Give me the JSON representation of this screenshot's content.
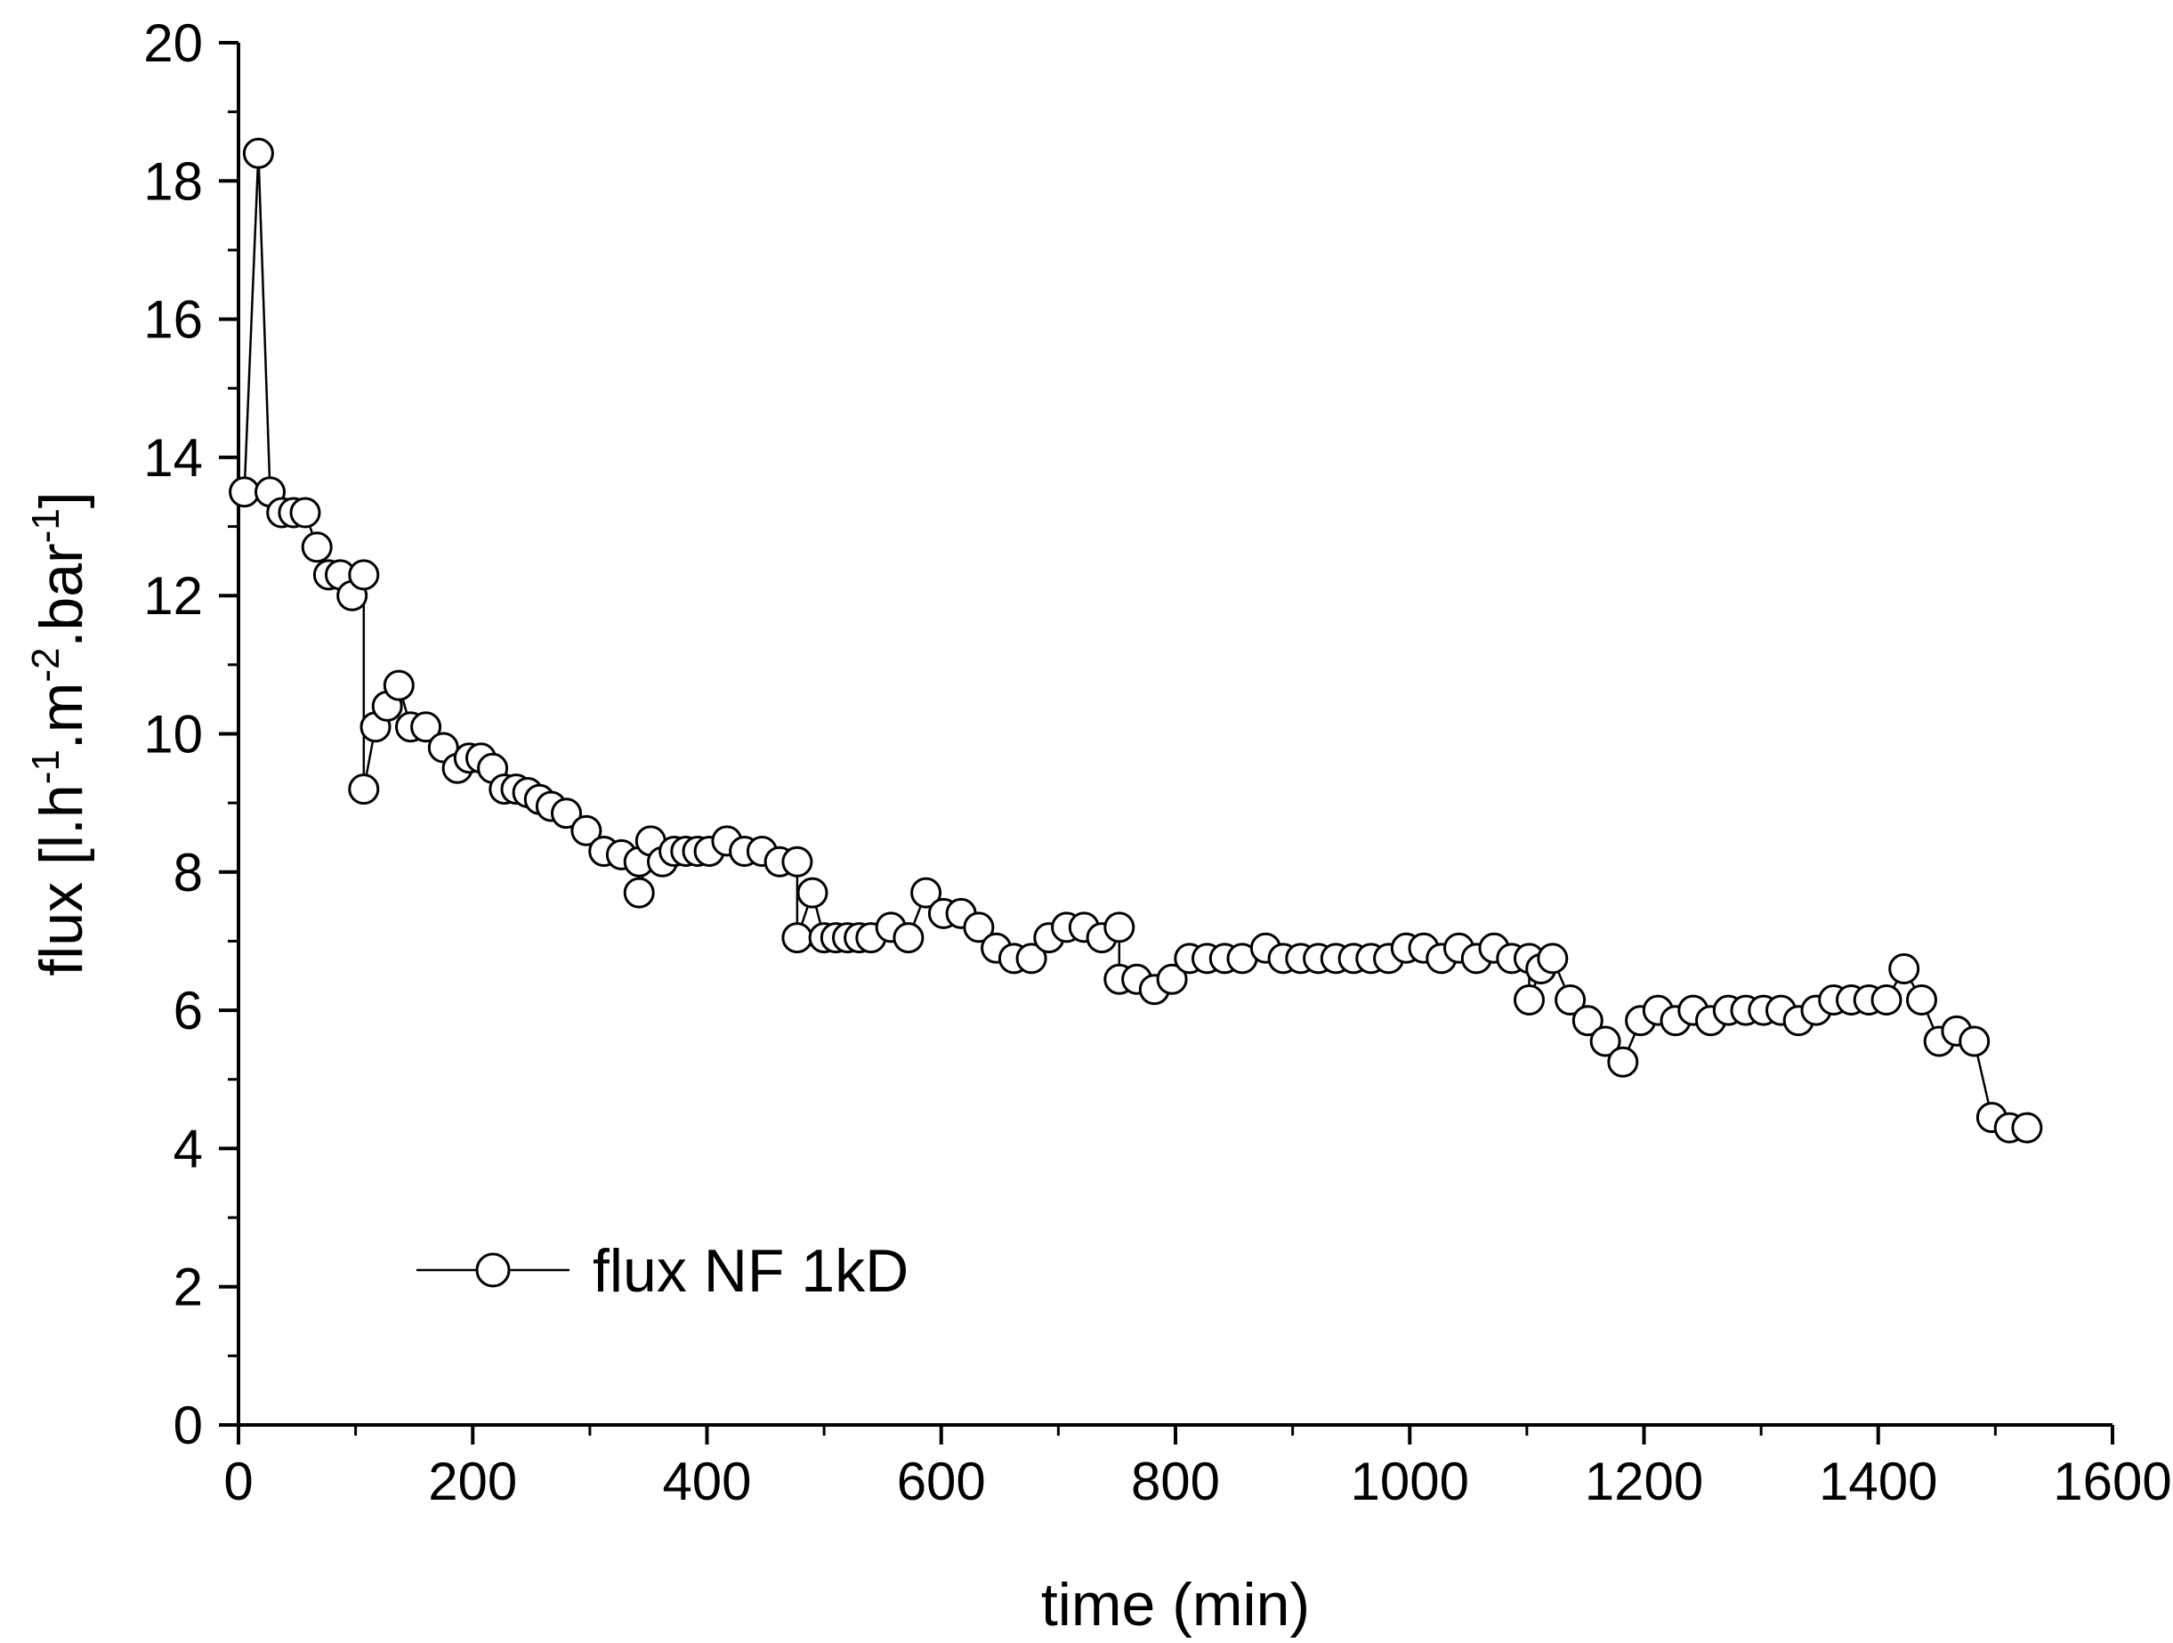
{
  "chart_data": {
    "type": "line",
    "title": "",
    "xlabel": "time (min)",
    "ylabel": {
      "parts": [
        {
          "text": "flux [l.h",
          "sup": false
        },
        {
          "text": "-1",
          "sup": true
        },
        {
          "text": ".m",
          "sup": false
        },
        {
          "text": "-2",
          "sup": true
        },
        {
          "text": ".bar",
          "sup": false
        },
        {
          "text": "-1",
          "sup": true
        },
        {
          "text": "]",
          "sup": false
        }
      ]
    },
    "xlim": [
      0,
      1600
    ],
    "ylim": [
      0,
      20
    ],
    "xticks": [
      "0",
      "200",
      "400",
      "600",
      "800",
      "1000",
      "1200",
      "1400",
      "1600"
    ],
    "yticks": [
      "0",
      "2",
      "4",
      "6",
      "8",
      "10",
      "12",
      "14",
      "16",
      "18",
      "20"
    ],
    "grid": false,
    "legend_position": "bottom-left",
    "marker": "open-circle",
    "series": [
      {
        "name": "flux NF 1kD",
        "color": "#000000",
        "x": [
          5,
          17,
          27,
          37,
          47,
          57,
          67,
          77,
          87,
          97,
          107,
          107,
          117,
          127,
          137,
          147,
          160,
          175,
          187,
          197,
          207,
          217,
          227,
          237,
          247,
          257,
          267,
          280,
          297,
          312,
          327,
          342,
          342,
          352,
          362,
          372,
          382,
          392,
          402,
          417,
          432,
          447,
          462,
          477,
          477,
          490,
          500,
          510,
          520,
          530,
          540,
          557,
          572,
          587,
          602,
          617,
          632,
          647,
          662,
          677,
          692,
          707,
          722,
          737,
          752,
          752,
          767,
          782,
          797,
          812,
          827,
          842,
          857,
          877,
          892,
          907,
          922,
          937,
          952,
          967,
          982,
          997,
          1012,
          1027,
          1042,
          1057,
          1072,
          1087,
          1102,
          1102,
          1112,
          1122,
          1137,
          1152,
          1167,
          1182,
          1197,
          1212,
          1227,
          1242,
          1257,
          1272,
          1287,
          1302,
          1317,
          1332,
          1347,
          1362,
          1377,
          1392,
          1407,
          1422,
          1437,
          1452,
          1467,
          1482,
          1497,
          1512,
          1527
        ],
        "y": [
          13.5,
          18.4,
          13.5,
          13.2,
          13.2,
          13.2,
          12.7,
          12.3,
          12.3,
          12.0,
          12.3,
          9.2,
          10.1,
          10.4,
          10.7,
          10.1,
          10.1,
          9.8,
          9.5,
          9.65,
          9.65,
          9.5,
          9.2,
          9.2,
          9.15,
          9.05,
          8.95,
          8.85,
          8.6,
          8.3,
          8.25,
          8.15,
          7.7,
          8.45,
          8.15,
          8.3,
          8.3,
          8.3,
          8.3,
          8.45,
          8.3,
          8.3,
          8.15,
          8.15,
          7.05,
          7.7,
          7.05,
          7.05,
          7.05,
          7.05,
          7.05,
          7.2,
          7.05,
          7.7,
          7.4,
          7.4,
          7.2,
          6.9,
          6.75,
          6.75,
          7.05,
          7.2,
          7.2,
          7.05,
          7.2,
          6.45,
          6.45,
          6.3,
          6.45,
          6.75,
          6.75,
          6.75,
          6.75,
          6.9,
          6.75,
          6.75,
          6.75,
          6.75,
          6.75,
          6.75,
          6.75,
          6.9,
          6.9,
          6.75,
          6.9,
          6.75,
          6.9,
          6.75,
          6.75,
          6.15,
          6.6,
          6.75,
          6.15,
          5.85,
          5.55,
          5.25,
          5.85,
          6.0,
          5.85,
          6.0,
          5.85,
          6.0,
          6.0,
          6.0,
          6.0,
          5.85,
          6.0,
          6.15,
          6.15,
          6.15,
          6.15,
          6.6,
          6.15,
          5.55,
          5.7,
          5.55,
          4.45,
          4.3,
          4.3
        ]
      }
    ]
  }
}
